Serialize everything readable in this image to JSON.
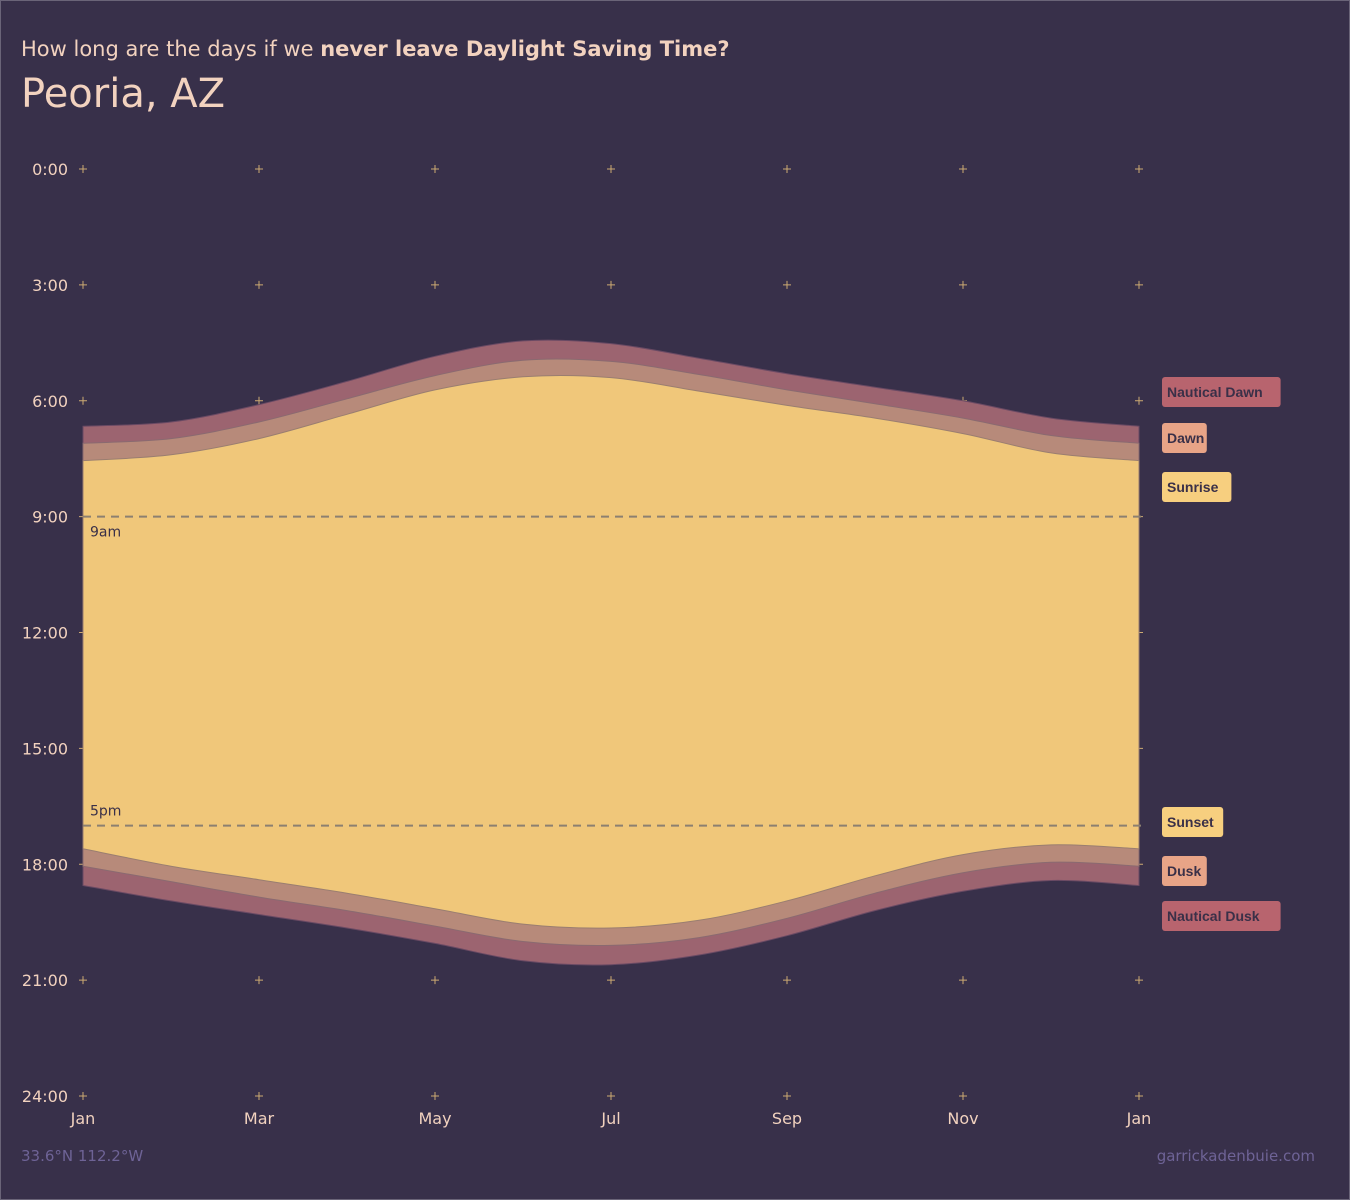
{
  "header": {
    "subtitle_plain": "How long are the days if we",
    "subtitle_bold": "never leave Daylight Saving Time?",
    "title": "Peoria, AZ"
  },
  "footer": {
    "coordinates": "33.6°N 112.2°W",
    "credit": "garrickadenbuie.com"
  },
  "colors": {
    "background": "#38304a",
    "daylight": "#f0c77a",
    "twilight_civil": "#b78a7a",
    "twilight_nautical": "#9c6470",
    "legend_nautical": "#b8646e",
    "legend_civil": "#e8a487",
    "legend_sun": "#f7cf7f"
  },
  "chart_data": {
    "type": "area",
    "x_axis": {
      "tick_labels": [
        "Jan",
        "Mar",
        "May",
        "Jul",
        "Sep",
        "Nov",
        "Jan"
      ],
      "tick_months": [
        0,
        2,
        4,
        6,
        8,
        10,
        12
      ],
      "range_months": [
        0,
        12
      ]
    },
    "y_axis": {
      "tick_labels": [
        "0:00",
        "3:00",
        "6:00",
        "9:00",
        "12:00",
        "15:00",
        "18:00",
        "21:00",
        "24:00"
      ],
      "tick_hours": [
        0,
        3,
        6,
        9,
        12,
        15,
        18,
        21,
        24
      ],
      "range_hours": [
        0,
        24
      ],
      "inverted": true
    },
    "reference_lines": [
      {
        "label": "9am",
        "hour": 9
      },
      {
        "label": "5pm",
        "hour": 17
      }
    ],
    "x_months": [
      0,
      1,
      2,
      3,
      4,
      5,
      6,
      7,
      8,
      9,
      10,
      11,
      12
    ],
    "series": [
      {
        "name": "Nautical Dawn",
        "hours": [
          6.66,
          6.55,
          6.1,
          5.5,
          4.85,
          4.45,
          4.52,
          4.9,
          5.3,
          5.65,
          6.0,
          6.45,
          6.66
        ]
      },
      {
        "name": "Dawn",
        "hours": [
          7.1,
          6.98,
          6.55,
          5.95,
          5.35,
          4.95,
          4.98,
          5.32,
          5.72,
          6.08,
          6.45,
          6.9,
          7.1
        ]
      },
      {
        "name": "Sunrise",
        "hours": [
          7.55,
          7.4,
          6.98,
          6.35,
          5.72,
          5.38,
          5.4,
          5.75,
          6.12,
          6.45,
          6.85,
          7.35,
          7.55
        ]
      },
      {
        "name": "Sunset",
        "hours": [
          17.6,
          18.05,
          18.4,
          18.75,
          19.15,
          19.55,
          19.65,
          19.45,
          18.95,
          18.3,
          17.75,
          17.5,
          17.6
        ]
      },
      {
        "name": "Dusk",
        "hours": [
          18.05,
          18.45,
          18.85,
          19.2,
          19.6,
          20.0,
          20.1,
          19.9,
          19.4,
          18.75,
          18.22,
          17.95,
          18.05
        ]
      },
      {
        "name": "Nautical Dusk",
        "hours": [
          18.55,
          18.95,
          19.3,
          19.65,
          20.05,
          20.5,
          20.6,
          20.35,
          19.85,
          19.2,
          18.7,
          18.42,
          18.55
        ]
      }
    ],
    "legend": {
      "top": [
        "Nautical Dawn",
        "Dawn",
        "Sunrise"
      ],
      "bottom": [
        "Sunset",
        "Dusk",
        "Nautical Dusk"
      ]
    }
  }
}
